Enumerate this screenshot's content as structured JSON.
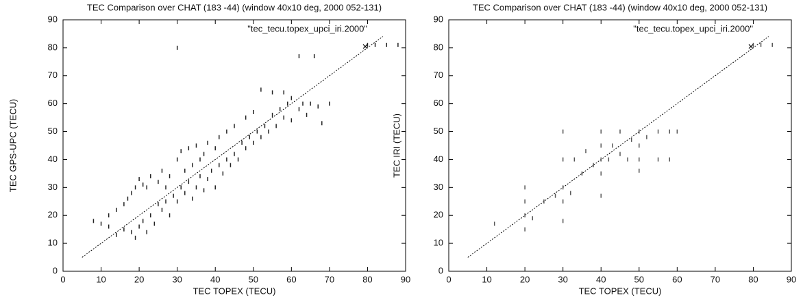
{
  "chart_data": [
    {
      "type": "scatter",
      "title": "TEC Comparison over CHAT (183 -44) (window 40x10 deg, 2000 052-131)",
      "x_label": "TEC TOPEX (TECU)",
      "y_label": "TEC GPS-UPC (TECU)",
      "xlim": [
        0,
        90
      ],
      "ylim": [
        0,
        90
      ],
      "xticks": [
        0,
        10,
        20,
        30,
        40,
        50,
        60,
        70,
        80,
        90
      ],
      "yticks": [
        0,
        10,
        20,
        30,
        40,
        50,
        60,
        70,
        80,
        90
      ],
      "legend": "upper right",
      "reference_line": {
        "x": [
          5,
          84
        ],
        "values": [
          5,
          84
        ]
      },
      "series": [
        {
          "name": "\"tec_tecu.topex_upci_iri.2000\"",
          "color": "#222222",
          "x": [
            8,
            10,
            12,
            12,
            14,
            14,
            16,
            16,
            17,
            18,
            18,
            19,
            19,
            20,
            20,
            21,
            21,
            22,
            22,
            23,
            23,
            24,
            25,
            25,
            26,
            26,
            27,
            27,
            28,
            28,
            29,
            30,
            30,
            30,
            31,
            31,
            32,
            32,
            33,
            33,
            34,
            34,
            35,
            35,
            36,
            36,
            37,
            37,
            38,
            38,
            39,
            40,
            40,
            41,
            41,
            42,
            43,
            43,
            44,
            45,
            45,
            46,
            47,
            48,
            48,
            49,
            50,
            50,
            51,
            52,
            52,
            53,
            54,
            55,
            55,
            56,
            57,
            58,
            58,
            59,
            60,
            60,
            62,
            62,
            63,
            64,
            65,
            66,
            67,
            68,
            70,
            80,
            82,
            85,
            88
          ],
          "values": [
            18,
            17,
            16,
            20,
            13,
            22,
            15,
            24,
            26,
            14,
            28,
            12,
            30,
            16,
            33,
            18,
            31,
            14,
            30,
            20,
            34,
            17,
            24,
            32,
            22,
            36,
            25,
            30,
            20,
            34,
            27,
            25,
            40,
            80,
            30,
            43,
            28,
            36,
            32,
            44,
            26,
            38,
            30,
            45,
            34,
            40,
            29,
            42,
            33,
            46,
            36,
            30,
            44,
            38,
            48,
            35,
            40,
            50,
            38,
            42,
            52,
            40,
            46,
            44,
            55,
            48,
            46,
            57,
            50,
            48,
            65,
            52,
            50,
            56,
            64,
            52,
            58,
            55,
            64,
            60,
            54,
            62,
            58,
            77,
            60,
            56,
            60,
            77,
            59,
            53,
            60,
            81,
            81,
            81,
            81
          ]
        }
      ]
    },
    {
      "type": "scatter",
      "title": "TEC Comparison over CHAT (183 -44) (window 40x10 deg, 2000 052-131)",
      "x_label": "TEC TOPEX (TECU)",
      "y_label": "TEC IRI (TECU)",
      "xlim": [
        0,
        90
      ],
      "ylim": [
        0,
        90
      ],
      "xticks": [
        0,
        10,
        20,
        30,
        40,
        50,
        60,
        70,
        80,
        90
      ],
      "yticks": [
        0,
        10,
        20,
        30,
        40,
        50,
        60,
        70,
        80,
        90
      ],
      "legend": "upper right",
      "reference_line": {
        "x": [
          5,
          84
        ],
        "values": [
          5,
          84
        ]
      },
      "series": [
        {
          "name": "\"tec_tecu.topex_upci_iri.2000\"",
          "color": "#555555",
          "x": [
            12,
            20,
            20,
            20,
            20,
            22,
            25,
            28,
            30,
            30,
            30,
            30,
            30,
            32,
            33,
            35,
            36,
            38,
            40,
            40,
            40,
            40,
            40,
            42,
            43,
            45,
            45,
            47,
            48,
            50,
            50,
            50,
            50,
            52,
            55,
            55,
            58,
            60,
            58,
            80,
            82,
            85
          ],
          "values": [
            17,
            15,
            20,
            25,
            30,
            19,
            25,
            27,
            18,
            25,
            30,
            40,
            50,
            28,
            40,
            35,
            43,
            38,
            27,
            35,
            40,
            45,
            50,
            40,
            45,
            42,
            50,
            40,
            47,
            36,
            40,
            45,
            50,
            48,
            40,
            50,
            50,
            50,
            40,
            81,
            81,
            81
          ]
        }
      ]
    }
  ]
}
